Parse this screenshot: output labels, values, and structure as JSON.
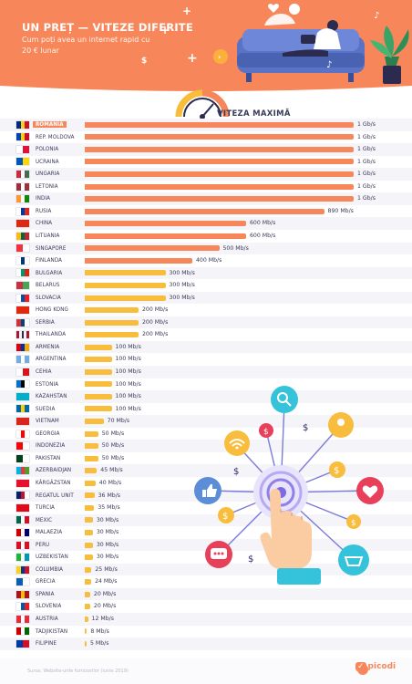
{
  "header": {
    "title": "UN PREȚ — VITEZE DIFERITE",
    "subtitle": "Cum poți avea un internet rapid cu 20 € lunar"
  },
  "legend_title": "VITEZA MAXIMĂ",
  "footer": {
    "source": "Sursa: Website-urile furnizorilor (iunie 2019)",
    "logo": "picodi"
  },
  "colors": {
    "header": "#f7875a",
    "bar_high": "#f7875a",
    "bar_low": "#f9bd3d",
    "highlight": "#f7875a"
  },
  "chart_data": {
    "type": "bar",
    "orientation": "horizontal",
    "title": "VITEZA MAXIMĂ",
    "unit": "Mb/s",
    "xlim": [
      0,
      1000
    ],
    "grid": false,
    "highlight": "ROMANIA",
    "rows": [
      {
        "country": "ROMANIA",
        "value": 1000,
        "label": "1 Gb/s"
      },
      {
        "country": "REP. MOLDOVA",
        "value": 1000,
        "label": "1 Gb/s"
      },
      {
        "country": "POLONIA",
        "value": 1000,
        "label": "1 Gb/s"
      },
      {
        "country": "UCRAINA",
        "value": 1000,
        "label": "1 Gb/s"
      },
      {
        "country": "UNGARIA",
        "value": 1000,
        "label": "1 Gb/s"
      },
      {
        "country": "LETONIA",
        "value": 1000,
        "label": "1 Gb/s"
      },
      {
        "country": "INDIA",
        "value": 1000,
        "label": "1 Gb/s"
      },
      {
        "country": "RUSIA",
        "value": 890,
        "label": "890 Mb/s"
      },
      {
        "country": "CHINA",
        "value": 600,
        "label": "600 Mb/s"
      },
      {
        "country": "LITUANIA",
        "value": 600,
        "label": "600 Mb/s"
      },
      {
        "country": "SINGAPORE",
        "value": 500,
        "label": "500 Mb/s"
      },
      {
        "country": "FINLANDA",
        "value": 400,
        "label": "400 Mb/s"
      },
      {
        "country": "BULGARIA",
        "value": 300,
        "label": "300 Mb/s"
      },
      {
        "country": "BELARUS",
        "value": 300,
        "label": "300 Mb/s"
      },
      {
        "country": "SLOVACIA",
        "value": 300,
        "label": "300 Mb/s"
      },
      {
        "country": "HONG KONG",
        "value": 200,
        "label": "200 Mb/s"
      },
      {
        "country": "SERBIA",
        "value": 200,
        "label": "200 Mb/s"
      },
      {
        "country": "THAILANDA",
        "value": 200,
        "label": "200 Mb/s"
      },
      {
        "country": "ARMENIA",
        "value": 100,
        "label": "100 Mb/s"
      },
      {
        "country": "ARGENTINA",
        "value": 100,
        "label": "100 Mb/s"
      },
      {
        "country": "CEHIA",
        "value": 100,
        "label": "100 Mb/s"
      },
      {
        "country": "ESTONIA",
        "value": 100,
        "label": "100 Mb/s"
      },
      {
        "country": "KAZAHSTAN",
        "value": 100,
        "label": "100 Mb/s"
      },
      {
        "country": "SUEDIA",
        "value": 100,
        "label": "100 Mb/s"
      },
      {
        "country": "VIETNAM",
        "value": 70,
        "label": "70 Mb/s"
      },
      {
        "country": "GEORGIA",
        "value": 50,
        "label": "50 Mb/s"
      },
      {
        "country": "INDONEZIA",
        "value": 50,
        "label": "50 Mb/s"
      },
      {
        "country": "PAKISTAN",
        "value": 50,
        "label": "50 Mb/s"
      },
      {
        "country": "AZERBAIDJAN",
        "value": 45,
        "label": "45 Mb/s"
      },
      {
        "country": "KÂRGÂZSTAN",
        "value": 40,
        "label": "40 Mb/s"
      },
      {
        "country": "REGATUL UNIT",
        "value": 36,
        "label": "36 Mb/s"
      },
      {
        "country": "TURCIA",
        "value": 35,
        "label": "35 Mb/s"
      },
      {
        "country": "MEXIC",
        "value": 30,
        "label": "30 Mb/s"
      },
      {
        "country": "MALAEZIA",
        "value": 30,
        "label": "30 Mb/s"
      },
      {
        "country": "PERU",
        "value": 30,
        "label": "30 Mb/s"
      },
      {
        "country": "UZBEKISTAN",
        "value": 30,
        "label": "30 Mb/s"
      },
      {
        "country": "COLUMBIA",
        "value": 25,
        "label": "25 Mb/s"
      },
      {
        "country": "GRECIA",
        "value": 24,
        "label": "24 Mb/s"
      },
      {
        "country": "SPANIA",
        "value": 20,
        "label": "20 Mb/s"
      },
      {
        "country": "SLOVENIA",
        "value": 20,
        "label": "20 Mb/s"
      },
      {
        "country": "AUSTRIA",
        "value": 12,
        "label": "12 Mb/s"
      },
      {
        "country": "TADJIKISTAN",
        "value": 8,
        "label": "8 Mb/s"
      },
      {
        "country": "FILIPINE",
        "value": 5,
        "label": "5 Mb/s"
      }
    ]
  },
  "flags": [
    [
      "#002b7f",
      "#fcd116",
      "#ce1126"
    ],
    [
      "#0046ae",
      "#ffd200",
      "#cc092f"
    ],
    [
      "#ffffff",
      "#dc143c"
    ],
    [
      "#0057b7",
      "#ffd700"
    ],
    [
      "#cd2a3e",
      "#ffffff",
      "#436f4d"
    ],
    [
      "#9e3039",
      "#ffffff",
      "#9e3039"
    ],
    [
      "#ff9933",
      "#ffffff",
      "#138808"
    ],
    [
      "#ffffff",
      "#0039a6",
      "#d52b1e"
    ],
    [
      "#de2910"
    ],
    [
      "#fdb913",
      "#006a44",
      "#c1272d"
    ],
    [
      "#ef3340",
      "#ffffff"
    ],
    [
      "#ffffff",
      "#003580",
      "#ffffff"
    ],
    [
      "#ffffff",
      "#00966e",
      "#d62612"
    ],
    [
      "#c8313e",
      "#4aa657"
    ],
    [
      "#ffffff",
      "#0b4ea2",
      "#ee1c25"
    ],
    [
      "#de2910"
    ],
    [
      "#c6363c",
      "#0c4076",
      "#ffffff"
    ],
    [
      "#a51931",
      "#f4f5f8",
      "#2d2a4a",
      "#f4f5f8",
      "#a51931"
    ],
    [
      "#d90012",
      "#0033a0",
      "#f2a800"
    ],
    [
      "#74acdf",
      "#ffffff",
      "#74acdf"
    ],
    [
      "#ffffff",
      "#d7141a"
    ],
    [
      "#0072ce",
      "#000000",
      "#ffffff"
    ],
    [
      "#00afca"
    ],
    [
      "#006aa7",
      "#fecc00",
      "#006aa7"
    ],
    [
      "#da251d"
    ],
    [
      "#ffffff",
      "#ff0000",
      "#ffffff"
    ],
    [
      "#ff0000",
      "#ffffff"
    ],
    [
      "#01411c",
      "#ffffff"
    ],
    [
      "#00b5e2",
      "#ef3340",
      "#509e2f"
    ],
    [
      "#e8112d"
    ],
    [
      "#012169",
      "#c8102e",
      "#ffffff"
    ],
    [
      "#e30a17"
    ],
    [
      "#006847",
      "#ffffff",
      "#ce1126"
    ],
    [
      "#cc0001",
      "#ffffff",
      "#010066"
    ],
    [
      "#d91023",
      "#ffffff",
      "#d91023"
    ],
    [
      "#1eb53a",
      "#ffffff",
      "#0099b5"
    ],
    [
      "#fcd116",
      "#003893",
      "#ce1126"
    ],
    [
      "#0d5eaf",
      "#ffffff"
    ],
    [
      "#aa151b",
      "#f1bf00",
      "#aa151b"
    ],
    [
      "#ffffff",
      "#005da4",
      "#ed1c24"
    ],
    [
      "#ed2939",
      "#ffffff",
      "#ed2939"
    ],
    [
      "#cc0000",
      "#ffffff",
      "#006600"
    ],
    [
      "#0038a8",
      "#ce1126"
    ]
  ]
}
